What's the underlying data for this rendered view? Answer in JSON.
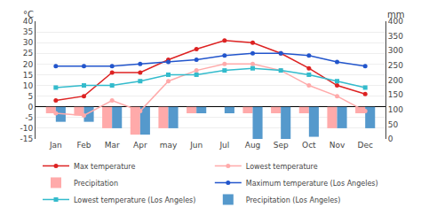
{
  "chart_data": {
    "type": "bar",
    "categories": [
      "Jan",
      "Feb",
      "Mar",
      "Apr",
      "may",
      "Jun",
      "Jul",
      "Aug",
      "Sep",
      "Oct",
      "Nov",
      "Dec"
    ],
    "series": [
      {
        "name": "Max temperature",
        "type": "line",
        "color": "#dd2222",
        "marker": "circle",
        "values": [
          3,
          5,
          16,
          16,
          22,
          27,
          31,
          30,
          25,
          18,
          10,
          6
        ]
      },
      {
        "name": "Lowest temperature",
        "type": "line",
        "color": "#ffaaaa",
        "marker": "circle",
        "values": [
          -3,
          -4,
          3,
          -2,
          12,
          17,
          20,
          20,
          17,
          10,
          5,
          -2
        ]
      },
      {
        "name": "Precipitation",
        "type": "bar",
        "color": "#ffaaaa",
        "values": [
          -3,
          -4,
          -10,
          -13,
          -10,
          -3,
          0,
          -3,
          -3,
          -3,
          -10,
          -3
        ]
      },
      {
        "name": "Maximum temperature (Los Angeles)",
        "type": "line",
        "color": "#2255cc",
        "marker": "circle",
        "values": [
          19,
          19,
          19,
          20,
          21,
          22,
          24,
          25,
          25,
          24,
          21,
          19
        ]
      },
      {
        "name": "Lowest temperature (Los Angeles)",
        "type": "line",
        "color": "#33bbcc",
        "marker": "square",
        "values": [
          9,
          10,
          10,
          12,
          15,
          15,
          17,
          18,
          17,
          15,
          12,
          9
        ]
      },
      {
        "name": "Precipitation (Los Angeles)",
        "type": "bar",
        "color": "#5599cc",
        "values": [
          -7,
          -7,
          -10,
          -13,
          -10,
          -3,
          -3,
          -15,
          -15,
          -14,
          -10,
          -10
        ]
      }
    ],
    "ylabel": "°C",
    "y2label": "mm",
    "ylim": [
      -15,
      40
    ],
    "yticks": [
      -15,
      -10,
      -5,
      0,
      5,
      10,
      15,
      20,
      25,
      30,
      35,
      40
    ],
    "y2lim": [
      0,
      400
    ],
    "y2ticks": [
      0,
      50,
      100,
      150,
      200,
      250,
      300,
      350,
      400
    ],
    "grid": true,
    "legend": "bottom"
  }
}
